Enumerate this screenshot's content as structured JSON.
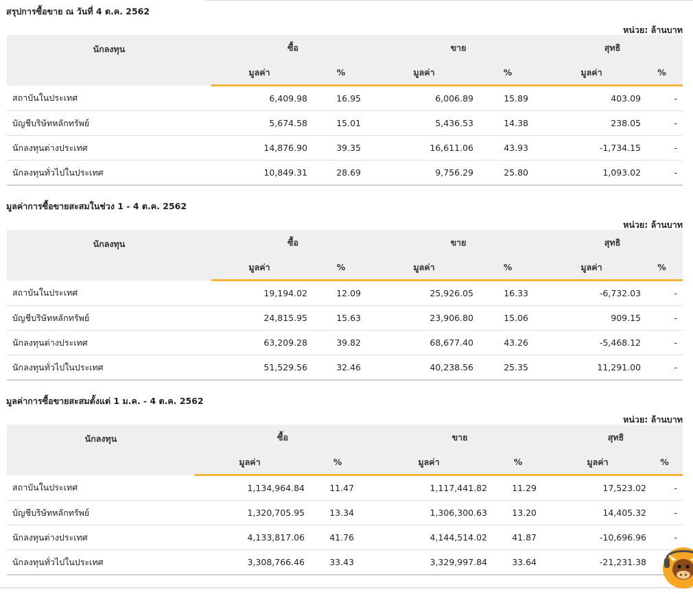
{
  "unit_label": "หน่วย: ล้านบาท",
  "headers": {
    "investor": "นักลงทุน",
    "buy": "ซื้อ",
    "sell": "ขาย",
    "net": "สุทธิ",
    "value": "มูลค่า",
    "percent": "%"
  },
  "sections": [
    {
      "title": "สรุปการซื้อขาย ณ วันที่ 4 ต.ค. 2562",
      "rows": [
        {
          "investor": "สถาบันในประเทศ",
          "buy_value": "6,409.98",
          "buy_pct": "16.95",
          "sell_value": "6,006.89",
          "sell_pct": "15.89",
          "net_value": "403.09",
          "net_pct": "-",
          "net_sign": "pos"
        },
        {
          "investor": "บัญชีบริษัทหลักทรัพย์",
          "buy_value": "5,674.58",
          "buy_pct": "15.01",
          "sell_value": "5,436.53",
          "sell_pct": "14.38",
          "net_value": "238.05",
          "net_pct": "-",
          "net_sign": "pos"
        },
        {
          "investor": "นักลงทุนต่างประเทศ",
          "buy_value": "14,876.90",
          "buy_pct": "39.35",
          "sell_value": "16,611.06",
          "sell_pct": "43.93",
          "net_value": "-1,734.15",
          "net_pct": "-",
          "net_sign": "neg"
        },
        {
          "investor": "นักลงทุนทั่วไปในประเทศ",
          "buy_value": "10,849.31",
          "buy_pct": "28.69",
          "sell_value": "9,756.29",
          "sell_pct": "25.80",
          "net_value": "1,093.02",
          "net_pct": "-",
          "net_sign": "pos"
        }
      ]
    },
    {
      "title": "มูลค่าการซื้อขายสะสมในช่วง 1 - 4 ต.ค. 2562",
      "rows": [
        {
          "investor": "สถาบันในประเทศ",
          "buy_value": "19,194.02",
          "buy_pct": "12.09",
          "sell_value": "25,926.05",
          "sell_pct": "16.33",
          "net_value": "-6,732.03",
          "net_pct": "-",
          "net_sign": "neg"
        },
        {
          "investor": "บัญชีบริษัทหลักทรัพย์",
          "buy_value": "24,815.95",
          "buy_pct": "15.63",
          "sell_value": "23,906.80",
          "sell_pct": "15.06",
          "net_value": "909.15",
          "net_pct": "-",
          "net_sign": "pos"
        },
        {
          "investor": "นักลงทุนต่างประเทศ",
          "buy_value": "63,209.28",
          "buy_pct": "39.82",
          "sell_value": "68,677.40",
          "sell_pct": "43.26",
          "net_value": "-5,468.12",
          "net_pct": "-",
          "net_sign": "neg"
        },
        {
          "investor": "นักลงทุนทั่วไปในประเทศ",
          "buy_value": "51,529.56",
          "buy_pct": "32.46",
          "sell_value": "40,238.56",
          "sell_pct": "25.35",
          "net_value": "11,291.00",
          "net_pct": "-",
          "net_sign": "pos"
        }
      ]
    },
    {
      "title": "มูลค่าการซื้อขายสะสมตั้งแต่ 1 ม.ค. - 4 ต.ค. 2562",
      "rows": [
        {
          "investor": "สถาบันในประเทศ",
          "buy_value": "1,134,964.84",
          "buy_pct": "11.47",
          "sell_value": "1,117,441.82",
          "sell_pct": "11.29",
          "net_value": "17,523.02",
          "net_pct": "-",
          "net_sign": "pos"
        },
        {
          "investor": "บัญชีบริษัทหลักทรัพย์",
          "buy_value": "1,320,705.95",
          "buy_pct": "13.34",
          "sell_value": "1,306,300.63",
          "sell_pct": "13.20",
          "net_value": "14,405.32",
          "net_pct": "-",
          "net_sign": "pos"
        },
        {
          "investor": "นักลงทุนต่างประเทศ",
          "buy_value": "4,133,817.06",
          "buy_pct": "41.76",
          "sell_value": "4,144,514.02",
          "sell_pct": "41.87",
          "net_value": "-10,696.96",
          "net_pct": "-",
          "net_sign": "neg"
        },
        {
          "investor": "นักลงทุนทั่วไปในประเทศ",
          "buy_value": "3,308,766.46",
          "buy_pct": "33.43",
          "sell_value": "3,329,997.84",
          "sell_pct": "33.64",
          "net_value": "-21,231.38",
          "net_pct": "-",
          "net_sign": "neg"
        }
      ]
    }
  ],
  "colors": {
    "positive": "#2f8f1f",
    "negative": "#e0242a",
    "accent": "#f4b437",
    "header_bg": "#efefef"
  },
  "mascot_icon": "bull-mascot-icon"
}
